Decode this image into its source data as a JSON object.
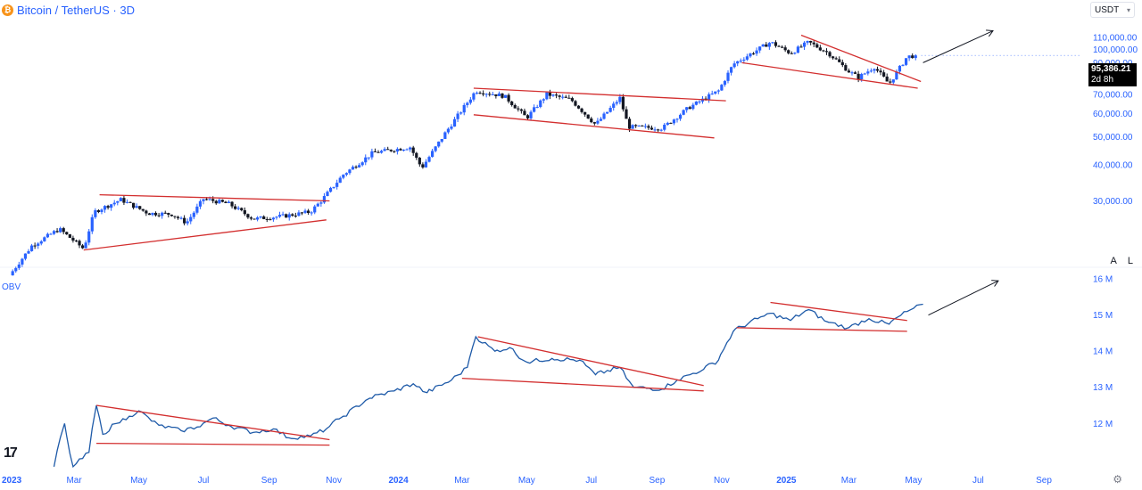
{
  "header": {
    "title": "Bitcoin / TetherUS · 3D",
    "currency": "USDT",
    "coin_icon": "bitcoin-icon"
  },
  "price_box": {
    "price": "95,386.21",
    "countdown": "2d 8h"
  },
  "scale_buttons": {
    "auto": "A",
    "log": "L"
  },
  "colors": {
    "up": "#2962ff",
    "down": "#131722",
    "trendline": "#d32f2f",
    "obv_line": "#1e5aa8",
    "axis_text": "#2962ff"
  },
  "chart_data": [
    {
      "type": "candlestick",
      "title": "Bitcoin / TetherUS · 3D",
      "y_scale": "log",
      "y_ticks": [
        "110,000.00",
        "100,000.00",
        "90,000.00",
        "80,000.00",
        "70,000.00",
        "60,000.00",
        "50,000.00",
        "40,000.00",
        "30,000.00"
      ],
      "y_tick_values": [
        110000,
        100000,
        90000,
        80000,
        70000,
        60000,
        50000,
        40000,
        30000
      ],
      "ylim": [
        19000,
        125000
      ],
      "close_path": [
        [
          "2022-12-30",
          16600
        ],
        [
          "2023-01-20",
          21000
        ],
        [
          "2023-02-15",
          24000
        ],
        [
          "2023-03-10",
          20500
        ],
        [
          "2023-03-20",
          27500
        ],
        [
          "2023-04-14",
          30300
        ],
        [
          "2023-05-10",
          27200
        ],
        [
          "2023-06-01",
          27000
        ],
        [
          "2023-06-15",
          25200
        ],
        [
          "2023-07-01",
          30500
        ],
        [
          "2023-07-25",
          29300
        ],
        [
          "2023-08-17",
          26000
        ],
        [
          "2023-09-15",
          26600
        ],
        [
          "2023-10-10",
          27500
        ],
        [
          "2023-10-20",
          30000
        ],
        [
          "2023-11-10",
          37000
        ],
        [
          "2023-12-08",
          44000
        ],
        [
          "2024-01-12",
          46000
        ],
        [
          "2024-01-23",
          39000
        ],
        [
          "2024-02-15",
          52000
        ],
        [
          "2024-03-14",
          72000
        ],
        [
          "2024-04-10",
          69000
        ],
        [
          "2024-05-01",
          58000
        ],
        [
          "2024-05-20",
          70000
        ],
        [
          "2024-06-12",
          67000
        ],
        [
          "2024-07-05",
          55000
        ],
        [
          "2024-07-28",
          68000
        ],
        [
          "2024-08-05",
          54000
        ],
        [
          "2024-09-06",
          53500
        ],
        [
          "2024-10-01",
          63000
        ],
        [
          "2024-10-29",
          72000
        ],
        [
          "2024-11-12",
          89000
        ],
        [
          "2024-12-17",
          106000
        ],
        [
          "2025-01-05",
          97000
        ],
        [
          "2025-01-22",
          106000
        ],
        [
          "2025-02-10",
          97000
        ],
        [
          "2025-03-01",
          84000
        ],
        [
          "2025-03-10",
          80000
        ],
        [
          "2025-03-25",
          87000
        ],
        [
          "2025-04-08",
          76000
        ],
        [
          "2025-04-25",
          94500
        ],
        [
          "2025-05-05",
          95386
        ]
      ],
      "trendlines": [
        {
          "name": "2023 triangle upper",
          "points": [
            [
              "2023-03-25",
              31500
            ],
            [
              "2023-10-28",
              30000
            ]
          ]
        },
        {
          "name": "2023 triangle lower",
          "points": [
            [
              "2023-03-10",
              20300
            ],
            [
              "2023-10-25",
              25800
            ]
          ]
        },
        {
          "name": "2024 channel upper",
          "points": [
            [
              "2024-03-12",
              73500
            ],
            [
              "2024-11-05",
              66500
            ]
          ]
        },
        {
          "name": "2024 channel lower",
          "points": [
            [
              "2024-03-12",
              59500
            ],
            [
              "2024-10-25",
              49500
            ]
          ]
        },
        {
          "name": "wedge upper",
          "points": [
            [
              "2025-01-15",
              112000
            ],
            [
              "2025-05-08",
              77500
            ]
          ]
        },
        {
          "name": "wedge lower",
          "points": [
            [
              "2024-11-20",
              90000
            ],
            [
              "2025-05-05",
              73500
            ]
          ]
        }
      ],
      "arrow": {
        "from": [
          "2025-05-10",
          90000
        ],
        "to": [
          "2025-07-15",
          116000
        ]
      },
      "last_price": 95386.21
    },
    {
      "type": "line",
      "title": "OBV",
      "y_ticks": [
        "16 M",
        "15 M",
        "14 M",
        "13 M",
        "12 M"
      ],
      "y_tick_values": [
        16,
        15,
        14,
        13,
        12
      ],
      "ylim": [
        10.7,
        16.2
      ],
      "x_ticks": [
        "2023",
        "Mar",
        "May",
        "Jul",
        "Sep",
        "Nov",
        "2024",
        "Mar",
        "May",
        "Jul",
        "Sep",
        "Nov",
        "2025",
        "Mar",
        "May",
        "Jul",
        "Sep"
      ],
      "x_tick_dates": [
        "2023-01-01",
        "2023-03-01",
        "2023-05-01",
        "2023-07-01",
        "2023-09-01",
        "2023-11-01",
        "2024-01-01",
        "2024-03-01",
        "2024-05-01",
        "2024-07-01",
        "2024-09-01",
        "2024-11-01",
        "2025-01-01",
        "2025-03-01",
        "2025-05-01",
        "2025-07-01",
        "2025-09-01"
      ],
      "x_tick_bold": [
        true,
        false,
        false,
        false,
        false,
        false,
        true,
        false,
        false,
        false,
        false,
        false,
        true,
        false,
        false,
        false,
        false
      ],
      "series": [
        {
          "name": "OBV",
          "points": [
            [
              "2023-02-10",
              10.8
            ],
            [
              "2023-02-20",
              12.0
            ],
            [
              "2023-02-28",
              10.8
            ],
            [
              "2023-03-15",
              11.2
            ],
            [
              "2023-03-22",
              12.5
            ],
            [
              "2023-03-28",
              11.7
            ],
            [
              "2023-04-10",
              12.0
            ],
            [
              "2023-04-22",
              12.2
            ],
            [
              "2023-05-01",
              12.35
            ],
            [
              "2023-05-20",
              11.95
            ],
            [
              "2023-06-10",
              11.8
            ],
            [
              "2023-06-25",
              11.9
            ],
            [
              "2023-07-10",
              12.15
            ],
            [
              "2023-07-25",
              11.95
            ],
            [
              "2023-08-17",
              11.75
            ],
            [
              "2023-09-05",
              11.85
            ],
            [
              "2023-09-20",
              11.6
            ],
            [
              "2023-10-10",
              11.65
            ],
            [
              "2023-10-25",
              11.85
            ],
            [
              "2023-11-10",
              12.2
            ],
            [
              "2023-12-05",
              12.7
            ],
            [
              "2023-12-28",
              12.9
            ],
            [
              "2024-01-15",
              13.1
            ],
            [
              "2024-01-28",
              12.85
            ],
            [
              "2024-02-20",
              13.2
            ],
            [
              "2024-03-06",
              13.55
            ],
            [
              "2024-03-14",
              14.4
            ],
            [
              "2024-04-01",
              14.0
            ],
            [
              "2024-04-15",
              14.1
            ],
            [
              "2024-05-01",
              13.7
            ],
            [
              "2024-05-25",
              13.8
            ],
            [
              "2024-06-20",
              13.75
            ],
            [
              "2024-07-05",
              13.35
            ],
            [
              "2024-07-28",
              13.55
            ],
            [
              "2024-08-10",
              13.0
            ],
            [
              "2024-09-06",
              12.95
            ],
            [
              "2024-09-20",
              13.2
            ],
            [
              "2024-10-15",
              13.5
            ],
            [
              "2024-10-29",
              13.75
            ],
            [
              "2024-11-12",
              14.55
            ],
            [
              "2024-12-05",
              14.9
            ],
            [
              "2024-12-17",
              15.05
            ],
            [
              "2025-01-05",
              14.85
            ],
            [
              "2025-01-22",
              15.15
            ],
            [
              "2025-02-10",
              14.8
            ],
            [
              "2025-03-01",
              14.65
            ],
            [
              "2025-03-20",
              14.9
            ],
            [
              "2025-04-08",
              14.75
            ],
            [
              "2025-04-25",
              15.1
            ],
            [
              "2025-05-10",
              15.3
            ]
          ]
        }
      ],
      "trendlines": [
        {
          "name": "2023 upper",
          "points": [
            [
              "2023-03-22",
              12.5
            ],
            [
              "2023-10-28",
              11.55
            ]
          ]
        },
        {
          "name": "2023 lower",
          "points": [
            [
              "2023-03-22",
              11.45
            ],
            [
              "2023-10-28",
              11.4
            ]
          ]
        },
        {
          "name": "2024 upper",
          "points": [
            [
              "2024-03-16",
              14.4
            ],
            [
              "2024-10-15",
              13.05
            ]
          ]
        },
        {
          "name": "2024 lower",
          "points": [
            [
              "2024-03-01",
              13.25
            ],
            [
              "2024-10-15",
              12.9
            ]
          ]
        },
        {
          "name": "2025 upper",
          "points": [
            [
              "2024-12-17",
              15.35
            ],
            [
              "2025-04-25",
              14.85
            ]
          ]
        },
        {
          "name": "2025 lower",
          "points": [
            [
              "2024-11-15",
              14.65
            ],
            [
              "2025-04-25",
              14.55
            ]
          ]
        }
      ],
      "arrow": {
        "from": [
          "2025-05-15",
          15.0
        ],
        "to": [
          "2025-07-20",
          15.95
        ]
      }
    }
  ]
}
